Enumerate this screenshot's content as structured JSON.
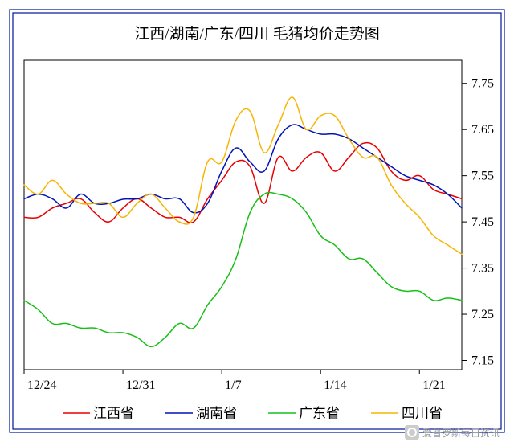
{
  "title": "江西/湖南/广东/四川 毛猪均价走势图",
  "title_fontsize": 19,
  "background_color": "#ffffff",
  "border_color": "#001499",
  "axis_label_fontsize": 16,
  "legend_fontsize": 17,
  "line_width": 1.5,
  "x_axis": {
    "ticks": [
      "12/24",
      "12/31",
      "1/7",
      "1/14",
      "1/21"
    ],
    "tick_positions": [
      0,
      7,
      14,
      21,
      28
    ],
    "xlim": [
      0,
      31
    ]
  },
  "y_axis": {
    "ticks": [
      "7.15",
      "7.25",
      "7.35",
      "7.45",
      "7.55",
      "7.65",
      "7.75"
    ],
    "tick_positions": [
      7.15,
      7.25,
      7.35,
      7.45,
      7.55,
      7.65,
      7.75
    ],
    "ylim": [
      7.13,
      7.8
    ],
    "side": "right"
  },
  "series": [
    {
      "name": "江西省",
      "color": "#e80000",
      "values": [
        7.46,
        7.46,
        7.48,
        7.49,
        7.5,
        7.47,
        7.45,
        7.48,
        7.5,
        7.48,
        7.46,
        7.46,
        7.45,
        7.5,
        7.54,
        7.58,
        7.57,
        7.49,
        7.59,
        7.56,
        7.59,
        7.6,
        7.56,
        7.59,
        7.62,
        7.61,
        7.56,
        7.54,
        7.55,
        7.52,
        7.51,
        7.5
      ]
    },
    {
      "name": "湖南省",
      "color": "#0013b6",
      "values": [
        7.5,
        7.51,
        7.5,
        7.48,
        7.51,
        7.49,
        7.49,
        7.499,
        7.5,
        7.51,
        7.5,
        7.5,
        7.47,
        7.49,
        7.56,
        7.61,
        7.58,
        7.56,
        7.63,
        7.66,
        7.65,
        7.64,
        7.64,
        7.63,
        7.61,
        7.59,
        7.57,
        7.55,
        7.54,
        7.53,
        7.51,
        7.48
      ]
    },
    {
      "name": "广东省",
      "color": "#16c016",
      "values": [
        7.28,
        7.26,
        7.23,
        7.23,
        7.22,
        7.22,
        7.21,
        7.21,
        7.2,
        7.18,
        7.2,
        7.23,
        7.22,
        7.27,
        7.31,
        7.37,
        7.47,
        7.51,
        7.51,
        7.5,
        7.47,
        7.42,
        7.4,
        7.37,
        7.37,
        7.34,
        7.31,
        7.3,
        7.3,
        7.28,
        7.285,
        7.28
      ]
    },
    {
      "name": "四川省",
      "color": "#f7b500",
      "values": [
        7.53,
        7.51,
        7.54,
        7.51,
        7.49,
        7.49,
        7.49,
        7.46,
        7.49,
        7.51,
        7.48,
        7.45,
        7.46,
        7.58,
        7.58,
        7.67,
        7.69,
        7.6,
        7.66,
        7.72,
        7.65,
        7.68,
        7.68,
        7.63,
        7.59,
        7.59,
        7.53,
        7.49,
        7.46,
        7.42,
        7.4,
        7.38
      ]
    }
  ],
  "legend_items": [
    "江西省",
    "湖南省",
    "广东省",
    "四川省"
  ],
  "watermark": {
    "text": "爱普罗斯每日资讯",
    "icon_color": "#cccccc"
  }
}
